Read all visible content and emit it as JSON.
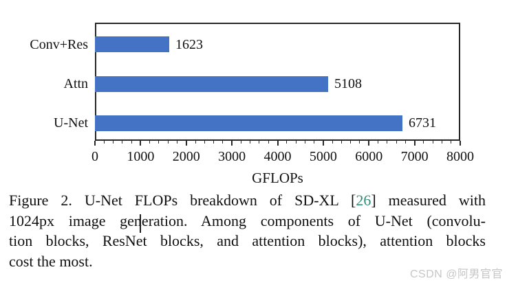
{
  "chart_data": {
    "type": "bar",
    "orientation": "horizontal",
    "categories": [
      "Conv+Res",
      "Attn",
      "U-Net"
    ],
    "values": [
      1623,
      5108,
      6731
    ],
    "data_labels": [
      "1623",
      "5108",
      "6731"
    ],
    "title": "",
    "xlabel": "GFLOPs",
    "ylabel": "",
    "xlim": [
      0,
      8000
    ],
    "x_major_ticks": [
      0,
      1000,
      2000,
      3000,
      4000,
      5000,
      6000,
      7000,
      8000
    ],
    "x_minor_tick_step": 200,
    "grid": false,
    "legend": false,
    "bar_color": "#4472C4",
    "axis_color": "#262626"
  },
  "caption": {
    "line1_pre": "Figure 2. U-Net FLOPs breakdown of SD-XL [",
    "citation": "26",
    "line1_post": "] measured with",
    "line2": "1024px image generation. Among components of U-Net (convolu-",
    "line3": "tion blocks, ResNet blocks, and attention blocks), attention blocks",
    "line4": "cost the most.",
    "citation_color": "#2e8b77",
    "text_color": "#0e0e0e"
  },
  "watermark": {
    "text": "CSDN @阿男官官",
    "color": "#c6c6c6"
  }
}
